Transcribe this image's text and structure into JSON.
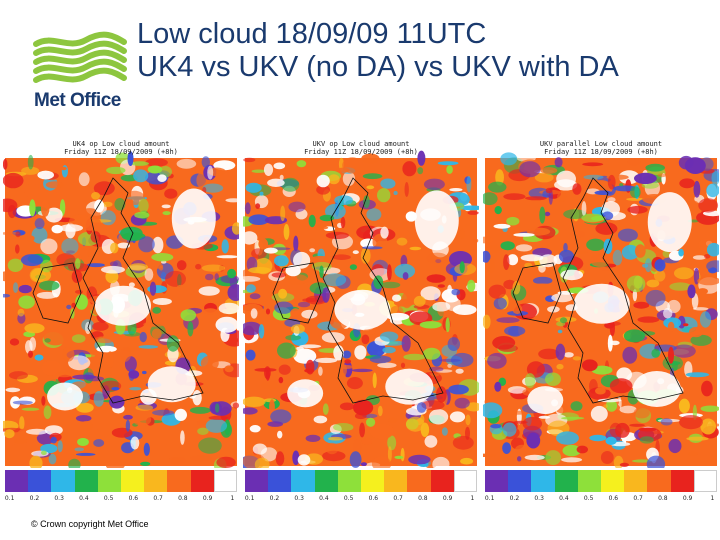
{
  "logo": {
    "text": "Met Office",
    "wave_color": "#8dc63f",
    "text_color": "#1a3a6e"
  },
  "title": {
    "line1": "Low cloud 18/09/09 11UTC",
    "line2": "UK4 vs UKV (no DA) vs UKV with DA"
  },
  "panels": [
    {
      "header1": "UK4 op Low cloud amount",
      "header2": "Friday 11Z 18/09/2009 (+8h)"
    },
    {
      "header1": "UKV op Low cloud amount",
      "header2": "Friday 11Z 18/09/2009 (+8h)"
    },
    {
      "header1": "UKV parallel Low cloud amount",
      "header2": "Friday 11Z 18/09/2009 (+8h)"
    }
  ],
  "colorbar": {
    "colors": [
      "#6b2fb3",
      "#3a52d9",
      "#2fb7e8",
      "#22b24c",
      "#8ee03a",
      "#f5f01e",
      "#f9b71e",
      "#f86a1e",
      "#e8231e",
      "#ffffff"
    ],
    "ticks": [
      "0.1",
      "0.2",
      "0.3",
      "0.4",
      "0.5",
      "0.6",
      "0.7",
      "0.8",
      "0.9",
      "1"
    ]
  },
  "footer": {
    "copyright": "© Crown copyright   Met Office"
  }
}
